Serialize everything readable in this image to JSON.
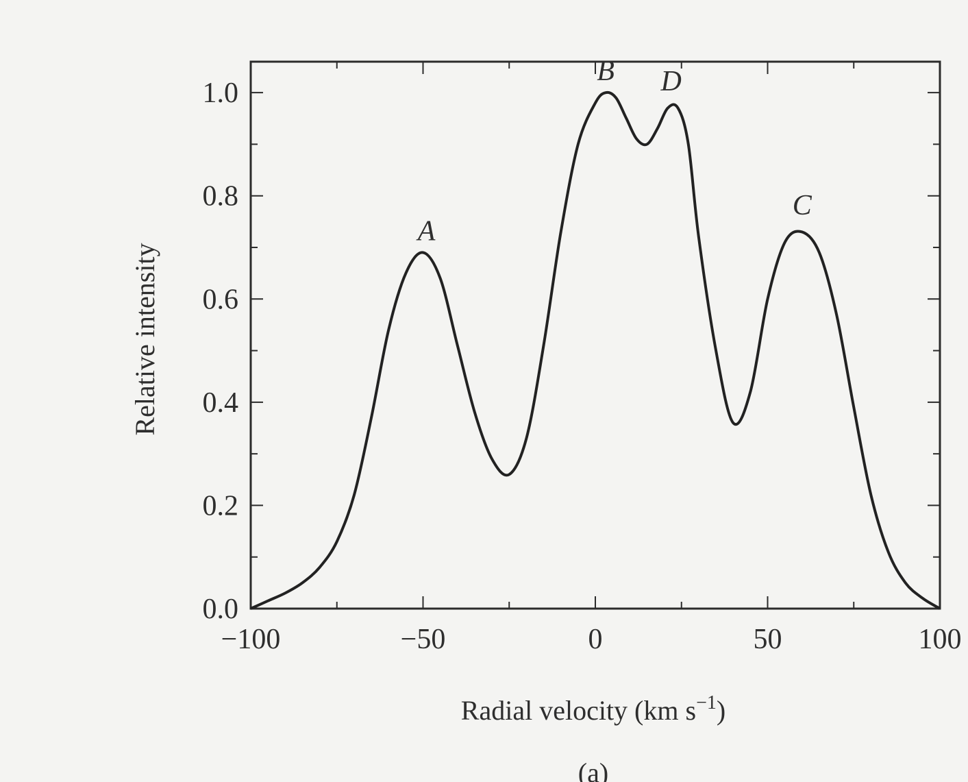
{
  "chart_data": {
    "type": "line",
    "xlabel": "Radial velocity (km s",
    "xlabel_sup": "−1",
    "xlabel_close": ")",
    "ylabel": "Relative intensity",
    "xlim": [
      -100,
      100
    ],
    "ylim": [
      0.0,
      1.1
    ],
    "x_ticks": [
      {
        "value": -100,
        "label": "−100"
      },
      {
        "value": -50,
        "label": "−50"
      },
      {
        "value": 0,
        "label": "0"
      },
      {
        "value": 50,
        "label": "50"
      },
      {
        "value": 100,
        "label": "100"
      }
    ],
    "y_ticks": [
      {
        "value": 0.0,
        "label": "0.0"
      },
      {
        "value": 0.2,
        "label": "0.2"
      },
      {
        "value": 0.4,
        "label": "0.4"
      },
      {
        "value": 0.6,
        "label": "0.6"
      },
      {
        "value": 0.8,
        "label": "0.8"
      },
      {
        "value": 1.0,
        "label": "1.0"
      }
    ],
    "x_minor_step": 25,
    "y_minor_step": 0.1,
    "grid": false,
    "series": [
      {
        "x": [
          -100,
          -95,
          -90,
          -85,
          -80,
          -75,
          -70,
          -65,
          -60,
          -55,
          -50,
          -45,
          -40,
          -35,
          -30,
          -25,
          -20,
          -15,
          -10,
          -5,
          0,
          3,
          6,
          9,
          12,
          15,
          18,
          21,
          24,
          27,
          30,
          35,
          40,
          45,
          50,
          55,
          60,
          65,
          70,
          75,
          80,
          85,
          90,
          95,
          100
        ],
        "y": [
          0.0,
          0.015,
          0.03,
          0.05,
          0.08,
          0.13,
          0.22,
          0.37,
          0.54,
          0.65,
          0.69,
          0.64,
          0.51,
          0.38,
          0.29,
          0.26,
          0.33,
          0.51,
          0.73,
          0.9,
          0.98,
          1.0,
          0.99,
          0.95,
          0.91,
          0.9,
          0.93,
          0.97,
          0.97,
          0.9,
          0.72,
          0.5,
          0.36,
          0.42,
          0.6,
          0.71,
          0.73,
          0.69,
          0.57,
          0.39,
          0.22,
          0.11,
          0.05,
          0.02,
          0.0
        ],
        "peaks": [
          {
            "label": "A",
            "x": -49,
            "y": 0.69
          },
          {
            "label": "B",
            "x": 3,
            "y": 1.0
          },
          {
            "label": "D",
            "x": 22,
            "y": 0.98
          },
          {
            "label": "C",
            "x": 60,
            "y": 0.74
          }
        ]
      }
    ]
  },
  "caption": "(a)"
}
